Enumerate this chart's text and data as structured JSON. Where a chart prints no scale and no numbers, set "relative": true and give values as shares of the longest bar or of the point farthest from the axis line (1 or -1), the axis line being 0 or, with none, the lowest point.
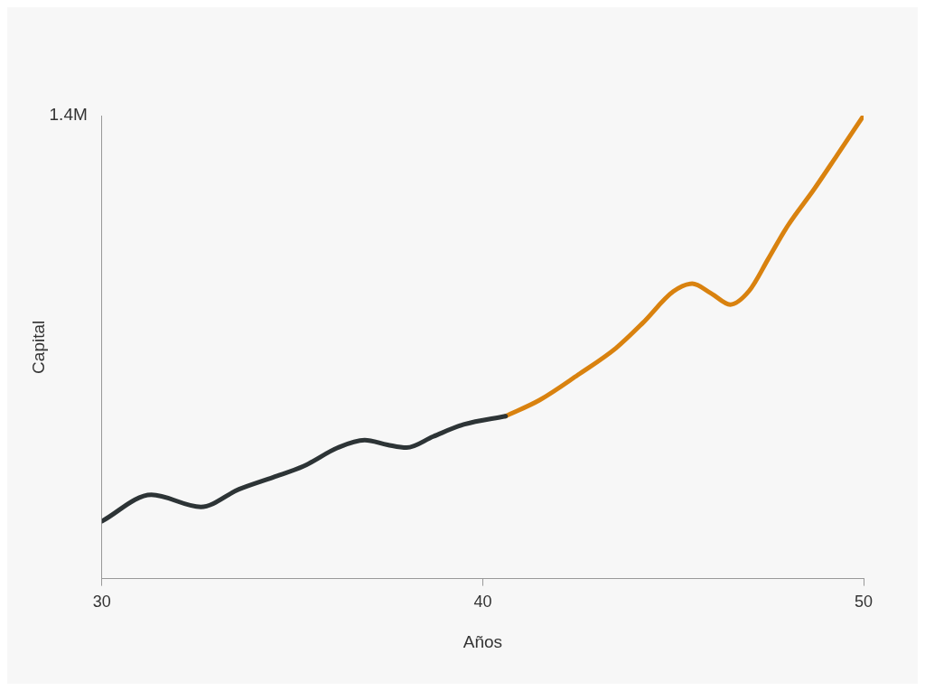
{
  "chart_data": {
    "type": "line",
    "relative": true,
    "xlabel": "Años",
    "ylabel": "Capital",
    "annotations": [
      "1.4M"
    ],
    "xlim": [
      30,
      50
    ],
    "xticks": [
      30,
      40,
      50
    ],
    "grid": false,
    "legend": false,
    "marker": "none",
    "line_style": "solid",
    "series": [
      {
        "color": "#2d3436",
        "x": [
          30,
          31.3,
          32.6,
          33.6,
          34.5,
          35.3,
          36.2,
          36.9,
          37.5,
          38,
          38.7,
          39.5,
          40.6
        ],
        "values": [
          0.124,
          0.181,
          0.155,
          0.193,
          0.219,
          0.243,
          0.283,
          0.299,
          0.289,
          0.283,
          0.307,
          0.333,
          0.351
        ]
      },
      {
        "color": "#d9820f",
        "x": [
          40.6,
          41.5,
          42.5,
          43.5,
          44.2,
          45,
          45.5,
          46,
          46.5,
          47,
          47.5,
          48,
          48.7,
          49.3,
          50
        ],
        "values": [
          0.351,
          0.386,
          0.44,
          0.498,
          0.552,
          0.62,
          0.637,
          0.616,
          0.592,
          0.622,
          0.691,
          0.761,
          0.841,
          0.914,
          1
        ]
      }
    ]
  }
}
